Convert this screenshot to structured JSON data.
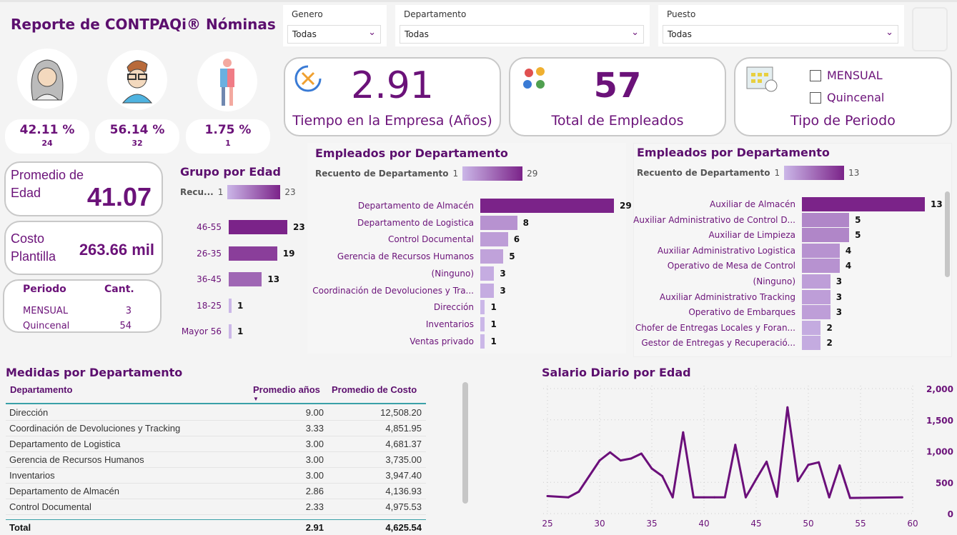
{
  "report_title": "Reporte de CONTPAQi® Nóminas",
  "filters": [
    {
      "label": "Genero",
      "value": "Todas"
    },
    {
      "label": "Departamento",
      "value": "Todas"
    },
    {
      "label": "Puesto",
      "value": "Todas"
    }
  ],
  "gender": [
    {
      "icon": "woman-avatar-icon",
      "percent": "42.11 %",
      "count": "24"
    },
    {
      "icon": "man-avatar-icon",
      "percent": "56.14 %",
      "count": "32"
    },
    {
      "icon": "unisex-person-icon",
      "percent": "1.75 %",
      "count": "1"
    }
  ],
  "kpis": {
    "tenure": {
      "value": "2.91",
      "label": "Tiempo en la Empresa (Años)"
    },
    "employees": {
      "value": "57",
      "label": "Total de Empleados"
    },
    "period_type": {
      "label": "Tipo de Periodo",
      "options": [
        "MENSUAL",
        "Quincenal"
      ]
    },
    "avg_age": {
      "label": "Promedio de Edad",
      "value": "41.07"
    },
    "cost": {
      "label": "Costo Plantilla",
      "value": "263.66 mil"
    }
  },
  "period_table": {
    "headers": [
      "Periodo",
      "Cant."
    ],
    "rows": [
      [
        "MENSUAL",
        "3"
      ],
      [
        "Quincenal",
        "54"
      ]
    ]
  },
  "colors": {
    "accent": "#6b1279",
    "bar_min": "#cbb7e8",
    "bar_max": "#7b2389"
  },
  "chart_data": [
    {
      "type": "bar",
      "title": "Grupo por Edad",
      "legend": {
        "label": "Recu...",
        "min": "1",
        "max": "23"
      },
      "categories": [
        "46-55",
        "26-35",
        "36-45",
        "18-25",
        "Mayor 56"
      ],
      "values": [
        23,
        19,
        13,
        1,
        1
      ]
    },
    {
      "type": "bar",
      "title": "Empleados por Departamento",
      "legend": {
        "label": "Recuento de Departamento",
        "min": "1",
        "max": "29"
      },
      "categories": [
        "Departamento de Almacén",
        "Departamento de Logistica",
        "Control Documental",
        "Gerencia de Recursos Humanos",
        "(Ninguno)",
        "Coordinación de Devoluciones y Tra...",
        "Dirección",
        "Inventarios",
        "Ventas privado"
      ],
      "values": [
        29,
        8,
        6,
        5,
        3,
        3,
        1,
        1,
        1
      ]
    },
    {
      "type": "bar",
      "title": "Empleados por Departamento",
      "legend": {
        "label": "Recuento de Departamento",
        "min": "1",
        "max": "13"
      },
      "categories": [
        "Auxiliar de Almacén",
        "Auxiliar Administrativo de Control D...",
        "Auxiliar de Limpieza",
        "Auxiliar Administrativo Logistica",
        "Operativo de Mesa de Control",
        "(Ninguno)",
        "Auxiliar Administrativo Tracking",
        "Operativo de Embarques",
        "Chofer de Entregas Locales y Foran...",
        "Gestor de Entregas y Recuperació..."
      ],
      "values": [
        13,
        5,
        5,
        4,
        4,
        3,
        3,
        3,
        2,
        2
      ]
    },
    {
      "type": "line",
      "title": "Salario Diario por Edad",
      "xlim": [
        25,
        60
      ],
      "ylim": [
        0,
        2000
      ],
      "xticks": [
        "25",
        "30",
        "35",
        "40",
        "45",
        "50",
        "55",
        "60"
      ],
      "yticks": [
        "0",
        "500",
        "1,000",
        "1,500",
        "2,000"
      ],
      "grid": true,
      "x": [
        25,
        27,
        28,
        29,
        30,
        31,
        32,
        33,
        34,
        35,
        36,
        37,
        38,
        39,
        40,
        41,
        42,
        43,
        44,
        45,
        46,
        47,
        48,
        49,
        50,
        51,
        52,
        53,
        54,
        59
      ],
      "y": [
        280,
        260,
        350,
        600,
        850,
        980,
        850,
        880,
        960,
        720,
        600,
        260,
        1300,
        260,
        260,
        260,
        260,
        1100,
        260,
        550,
        830,
        270,
        1700,
        520,
        780,
        820,
        260,
        770,
        250,
        260
      ]
    }
  ],
  "measures": {
    "title": "Medidas por Departamento",
    "headers": [
      "Departamento",
      "Promedio años",
      "Promedio de Costo"
    ],
    "rows": [
      [
        "Dirección",
        "9.00",
        "12,508.20"
      ],
      [
        "Coordinación de Devoluciones y Tracking",
        "3.33",
        "4,851.95"
      ],
      [
        "Departamento de Logistica",
        "3.00",
        "4,681.37"
      ],
      [
        "Gerencia de Recursos Humanos",
        "3.00",
        "3,735.00"
      ],
      [
        "Inventarios",
        "3.00",
        "3,947.40"
      ],
      [
        "Departamento de Almacén",
        "2.86",
        "4,136.93"
      ],
      [
        "Control Documental",
        "2.33",
        "4,975.53"
      ]
    ],
    "total": [
      "Total",
      "2.91",
      "4,625.54"
    ]
  }
}
